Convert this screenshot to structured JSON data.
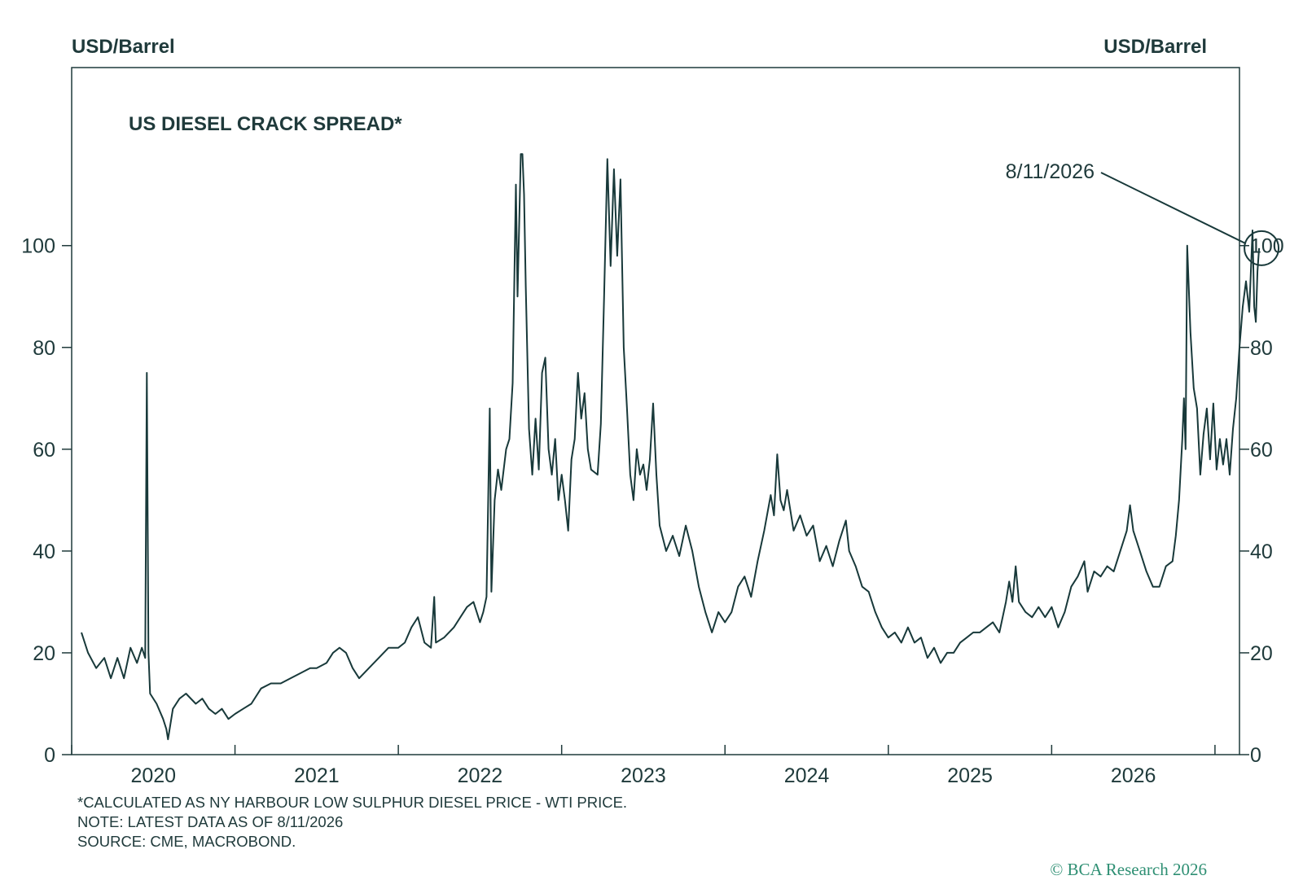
{
  "header": {
    "left_unit": "USD/Barrel",
    "right_unit": "USD/Barrel"
  },
  "footer": {
    "note_1": "*CALCULATED AS NY HARBOUR LOW SULPHUR DIESEL PRICE - WTI PRICE.",
    "note_2": "NOTE: LATEST DATA AS OF 8/11/2026",
    "note_3": "SOURCE: CME, MACROBOND.",
    "copyright": "© BCA Research 2026"
  },
  "colors": {
    "line": "#18393a",
    "axis": "#1f3a3b",
    "brand": "#2e8f73"
  },
  "chart_data": {
    "type": "line",
    "title": "US DIESEL CRACK SPREAD*",
    "ylabel_left": "USD/Barrel",
    "ylabel_right": "USD/Barrel",
    "xlim": [
      2019.56,
      2026.53
    ],
    "ylim": [
      0,
      120
    ],
    "yticks": [
      0,
      20,
      40,
      60,
      80,
      100
    ],
    "xtick_labels": [
      "2020",
      "2021",
      "2022",
      "2023",
      "2024",
      "2025",
      "2026"
    ],
    "grid": false,
    "annotation": {
      "label": "8/11/2026",
      "x": 2026.61,
      "y": 99.5
    },
    "series": [
      {
        "points": [
          [
            2019.56,
            24
          ],
          [
            2019.6,
            20
          ],
          [
            2019.65,
            17
          ],
          [
            2019.7,
            19
          ],
          [
            2019.74,
            15
          ],
          [
            2019.78,
            19
          ],
          [
            2019.82,
            15
          ],
          [
            2019.86,
            21
          ],
          [
            2019.9,
            18
          ],
          [
            2019.93,
            21
          ],
          [
            2019.95,
            19
          ],
          [
            2019.96,
            75
          ],
          [
            2019.97,
            20
          ],
          [
            2019.98,
            12
          ],
          [
            2020.02,
            10
          ],
          [
            2020.06,
            7
          ],
          [
            2020.08,
            5
          ],
          [
            2020.09,
            3
          ],
          [
            2020.12,
            9
          ],
          [
            2020.16,
            11
          ],
          [
            2020.2,
            12
          ],
          [
            2020.26,
            10
          ],
          [
            2020.3,
            11
          ],
          [
            2020.34,
            9
          ],
          [
            2020.38,
            8
          ],
          [
            2020.42,
            9
          ],
          [
            2020.46,
            7
          ],
          [
            2020.5,
            8
          ],
          [
            2020.55,
            9
          ],
          [
            2020.6,
            10
          ],
          [
            2020.66,
            13
          ],
          [
            2020.72,
            14
          ],
          [
            2020.78,
            14
          ],
          [
            2020.84,
            15
          ],
          [
            2020.9,
            16
          ],
          [
            2020.96,
            17
          ],
          [
            2021.0,
            17
          ],
          [
            2021.06,
            18
          ],
          [
            2021.1,
            20
          ],
          [
            2021.14,
            21
          ],
          [
            2021.18,
            20
          ],
          [
            2021.22,
            17
          ],
          [
            2021.26,
            15
          ],
          [
            2021.32,
            17
          ],
          [
            2021.38,
            19
          ],
          [
            2021.44,
            21
          ],
          [
            2021.5,
            21
          ],
          [
            2021.54,
            22
          ],
          [
            2021.58,
            25
          ],
          [
            2021.62,
            27
          ],
          [
            2021.66,
            22
          ],
          [
            2021.7,
            21
          ],
          [
            2021.72,
            31
          ],
          [
            2021.73,
            22
          ],
          [
            2021.78,
            23
          ],
          [
            2021.84,
            25
          ],
          [
            2021.88,
            27
          ],
          [
            2021.92,
            29
          ],
          [
            2021.96,
            30
          ],
          [
            2022.0,
            26
          ],
          [
            2022.02,
            28
          ],
          [
            2022.04,
            31
          ],
          [
            2022.06,
            68
          ],
          [
            2022.07,
            32
          ],
          [
            2022.09,
            50
          ],
          [
            2022.11,
            56
          ],
          [
            2022.13,
            52
          ],
          [
            2022.16,
            60
          ],
          [
            2022.18,
            62
          ],
          [
            2022.2,
            73
          ],
          [
            2022.22,
            112
          ],
          [
            2022.23,
            90
          ],
          [
            2022.25,
            118
          ],
          [
            2022.26,
            118
          ],
          [
            2022.27,
            110
          ],
          [
            2022.28,
            92
          ],
          [
            2022.3,
            64
          ],
          [
            2022.32,
            55
          ],
          [
            2022.34,
            66
          ],
          [
            2022.36,
            56
          ],
          [
            2022.38,
            75
          ],
          [
            2022.4,
            78
          ],
          [
            2022.42,
            60
          ],
          [
            2022.44,
            55
          ],
          [
            2022.46,
            62
          ],
          [
            2022.48,
            50
          ],
          [
            2022.5,
            55
          ],
          [
            2022.52,
            50
          ],
          [
            2022.54,
            44
          ],
          [
            2022.56,
            58
          ],
          [
            2022.58,
            62
          ],
          [
            2022.6,
            75
          ],
          [
            2022.62,
            66
          ],
          [
            2022.64,
            71
          ],
          [
            2022.66,
            60
          ],
          [
            2022.68,
            56
          ],
          [
            2022.72,
            55
          ],
          [
            2022.74,
            65
          ],
          [
            2022.76,
            90
          ],
          [
            2022.78,
            117
          ],
          [
            2022.8,
            96
          ],
          [
            2022.82,
            115
          ],
          [
            2022.84,
            98
          ],
          [
            2022.86,
            113
          ],
          [
            2022.88,
            80
          ],
          [
            2022.9,
            68
          ],
          [
            2022.92,
            55
          ],
          [
            2022.94,
            50
          ],
          [
            2022.96,
            60
          ],
          [
            2022.98,
            55
          ],
          [
            2023.0,
            57
          ],
          [
            2023.02,
            52
          ],
          [
            2023.04,
            58
          ],
          [
            2023.06,
            69
          ],
          [
            2023.08,
            55
          ],
          [
            2023.1,
            45
          ],
          [
            2023.14,
            40
          ],
          [
            2023.18,
            43
          ],
          [
            2023.22,
            39
          ],
          [
            2023.26,
            45
          ],
          [
            2023.3,
            40
          ],
          [
            2023.34,
            33
          ],
          [
            2023.38,
            28
          ],
          [
            2023.42,
            24
          ],
          [
            2023.46,
            28
          ],
          [
            2023.5,
            26
          ],
          [
            2023.54,
            28
          ],
          [
            2023.58,
            33
          ],
          [
            2023.62,
            35
          ],
          [
            2023.66,
            31
          ],
          [
            2023.7,
            38
          ],
          [
            2023.74,
            44
          ],
          [
            2023.78,
            51
          ],
          [
            2023.8,
            47
          ],
          [
            2023.82,
            59
          ],
          [
            2023.84,
            50
          ],
          [
            2023.86,
            48
          ],
          [
            2023.88,
            52
          ],
          [
            2023.92,
            44
          ],
          [
            2023.96,
            47
          ],
          [
            2024.0,
            43
          ],
          [
            2024.04,
            45
          ],
          [
            2024.08,
            38
          ],
          [
            2024.12,
            41
          ],
          [
            2024.16,
            37
          ],
          [
            2024.2,
            42
          ],
          [
            2024.24,
            46
          ],
          [
            2024.26,
            40
          ],
          [
            2024.3,
            37
          ],
          [
            2024.34,
            33
          ],
          [
            2024.38,
            32
          ],
          [
            2024.42,
            28
          ],
          [
            2024.46,
            25
          ],
          [
            2024.5,
            23
          ],
          [
            2024.54,
            24
          ],
          [
            2024.58,
            22
          ],
          [
            2024.62,
            25
          ],
          [
            2024.66,
            22
          ],
          [
            2024.7,
            23
          ],
          [
            2024.74,
            19
          ],
          [
            2024.78,
            21
          ],
          [
            2024.82,
            18
          ],
          [
            2024.86,
            20
          ],
          [
            2024.9,
            20
          ],
          [
            2024.94,
            22
          ],
          [
            2024.98,
            23
          ],
          [
            2025.02,
            24
          ],
          [
            2025.06,
            24
          ],
          [
            2025.1,
            25
          ],
          [
            2025.14,
            26
          ],
          [
            2025.18,
            24
          ],
          [
            2025.22,
            30
          ],
          [
            2025.24,
            34
          ],
          [
            2025.26,
            30
          ],
          [
            2025.28,
            37
          ],
          [
            2025.3,
            30
          ],
          [
            2025.34,
            28
          ],
          [
            2025.38,
            27
          ],
          [
            2025.42,
            29
          ],
          [
            2025.46,
            27
          ],
          [
            2025.5,
            29
          ],
          [
            2025.54,
            25
          ],
          [
            2025.58,
            28
          ],
          [
            2025.62,
            33
          ],
          [
            2025.66,
            35
          ],
          [
            2025.7,
            38
          ],
          [
            2025.72,
            32
          ],
          [
            2025.76,
            36
          ],
          [
            2025.8,
            35
          ],
          [
            2025.84,
            37
          ],
          [
            2025.88,
            36
          ],
          [
            2025.92,
            40
          ],
          [
            2025.96,
            44
          ],
          [
            2025.98,
            49
          ],
          [
            2026.0,
            44
          ],
          [
            2026.04,
            40
          ],
          [
            2026.08,
            36
          ],
          [
            2026.12,
            33
          ],
          [
            2026.16,
            33
          ],
          [
            2026.2,
            37
          ],
          [
            2026.24,
            38
          ],
          [
            2026.26,
            43
          ],
          [
            2026.28,
            50
          ],
          [
            2026.3,
            62
          ],
          [
            2026.31,
            70
          ],
          [
            2026.32,
            60
          ],
          [
            2026.33,
            100
          ],
          [
            2026.35,
            83
          ],
          [
            2026.37,
            72
          ],
          [
            2026.39,
            68
          ],
          [
            2026.41,
            55
          ],
          [
            2026.43,
            63
          ],
          [
            2026.45,
            68
          ],
          [
            2026.47,
            58
          ],
          [
            2026.49,
            69
          ],
          [
            2026.51,
            56
          ],
          [
            2026.53,
            62
          ],
          [
            2026.55,
            57
          ],
          [
            2026.57,
            62
          ],
          [
            2026.59,
            55
          ],
          [
            2026.61,
            64
          ],
          [
            2026.63,
            70
          ],
          [
            2026.65,
            80
          ],
          [
            2026.67,
            88
          ],
          [
            2026.69,
            93
          ],
          [
            2026.71,
            87
          ],
          [
            2026.73,
            103
          ],
          [
            2026.74,
            88
          ],
          [
            2026.75,
            85
          ],
          [
            2026.76,
            95
          ],
          [
            2026.77,
            99.5
          ]
        ]
      }
    ]
  }
}
